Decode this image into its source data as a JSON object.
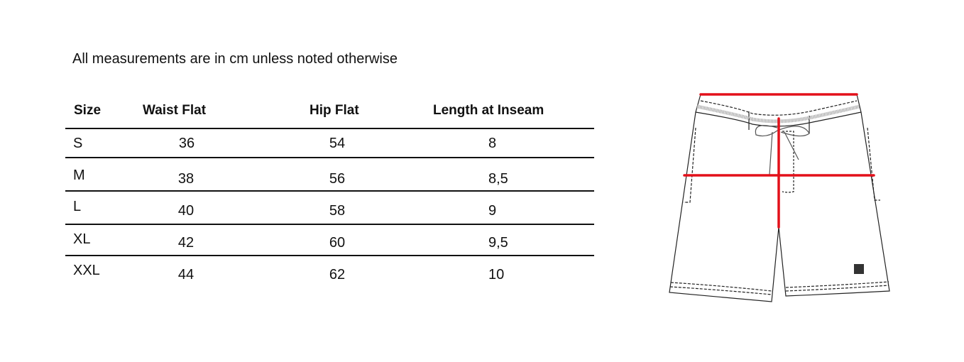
{
  "note": "All measurements are in cm unless noted otherwise",
  "table": {
    "headers": [
      "Size",
      "Waist Flat",
      "Hip Flat",
      "Length at Inseam"
    ],
    "rows": [
      [
        "S",
        "36",
        "54",
        "8"
      ],
      [
        "M",
        "38",
        "56",
        "8,5"
      ],
      [
        "L",
        "40",
        "58",
        "9"
      ],
      [
        "XL",
        "42",
        "60",
        "9,5"
      ],
      [
        "XXL",
        "44",
        "62",
        "10"
      ]
    ]
  },
  "diagram": {
    "item": "board shorts",
    "measure_color": "#e3101a",
    "measures": [
      "waist flat",
      "hip flat",
      "length at inseam"
    ]
  }
}
